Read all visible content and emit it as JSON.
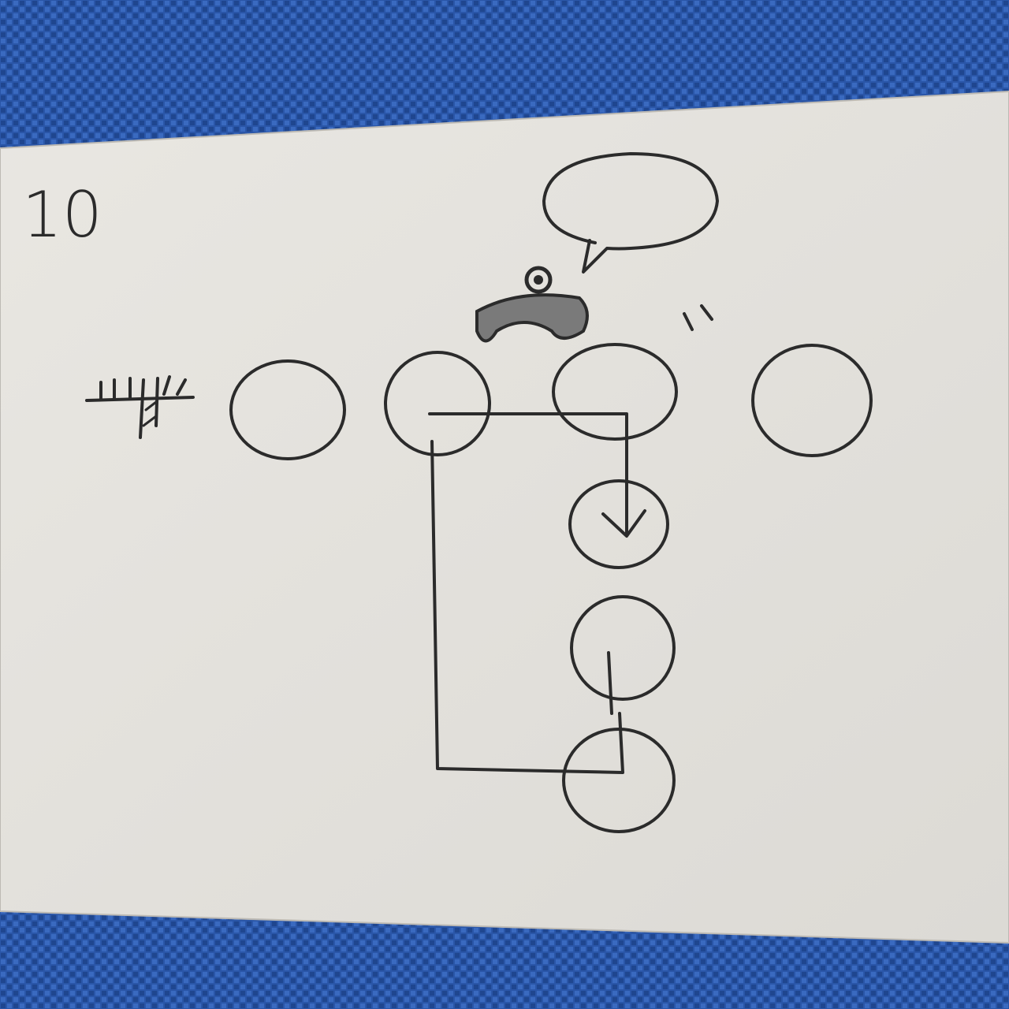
{
  "label": "10"
}
